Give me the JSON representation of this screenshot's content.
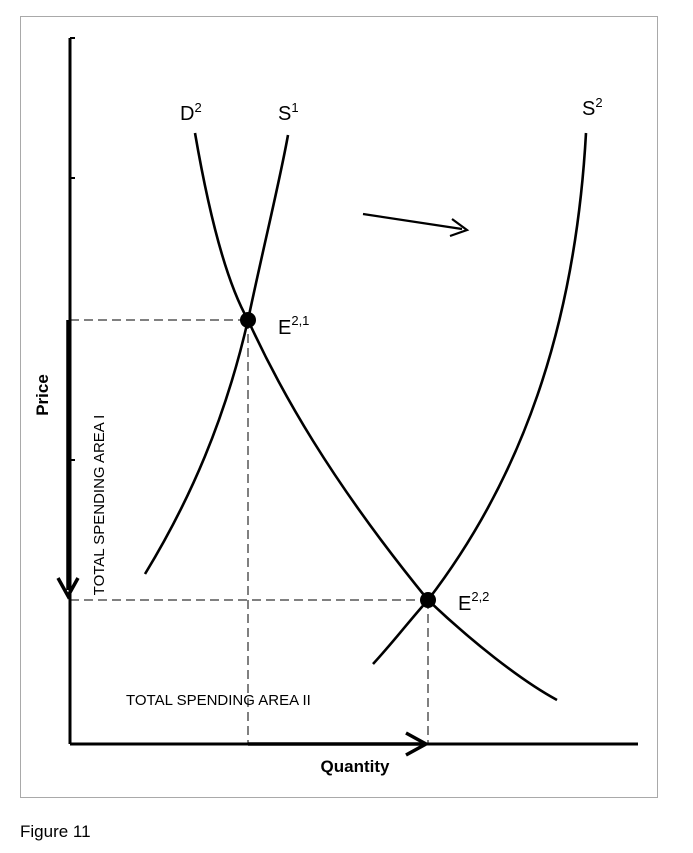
{
  "figure": {
    "caption": "Figure 11",
    "axes": {
      "y_label": "Price",
      "x_label": "Quantity"
    },
    "curves": {
      "demand": {
        "name": "D",
        "sup": "2"
      },
      "supply_1": {
        "name": "S",
        "sup": "1"
      },
      "supply_2": {
        "name": "S",
        "sup": "2"
      }
    },
    "points": {
      "e21": {
        "name": "E",
        "sup": "2,1"
      },
      "e22": {
        "name": "E",
        "sup": "2,2"
      }
    },
    "areas": {
      "area_1": "TOTAL SPENDING AREA  I",
      "area_2": "TOTAL SPENDING AREA  II"
    },
    "colors": {
      "ink": "#000000",
      "frame": "#a9a9a9"
    }
  }
}
